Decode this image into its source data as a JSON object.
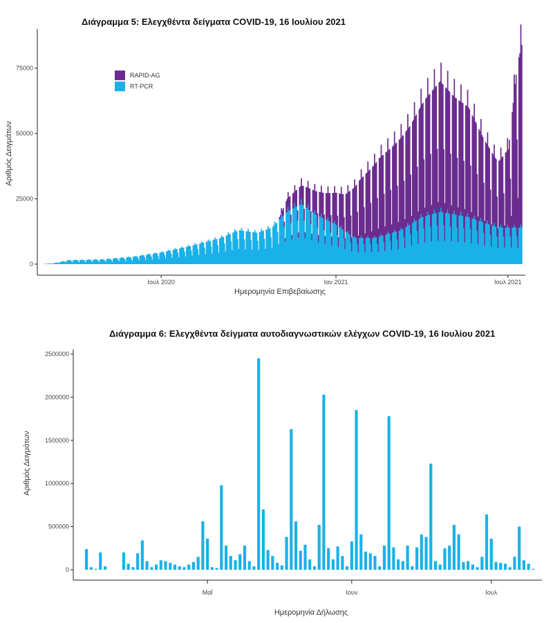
{
  "colors": {
    "rapid": "#6a2c8e",
    "pcr": "#1ab1e8",
    "bar": "#1ab1e8",
    "axis": "#222222"
  },
  "chart_data": [
    {
      "type": "bar",
      "stacked": true,
      "title": "Διάγραμμα 5: Ελεγχθέντα δείγματα COVID-19, 16 Ιουλίου 2021",
      "xlabel": "Ημερομηνία Επιβεβαίωσης",
      "ylabel": "Αριθμός Δειγμάτων",
      "ylim": [
        0,
        90000
      ],
      "yticks": [
        0,
        25000,
        50000,
        75000
      ],
      "ytick_labels": [
        "0",
        "25000",
        "50000",
        "75000"
      ],
      "xticks": [
        "2020-07-01",
        "2021-01-01",
        "2021-07-01"
      ],
      "xtick_labels": [
        "Ιουλ 2020",
        "Ιαν 2021",
        "Ιουλ 2021"
      ],
      "x_start": "2020-02-26",
      "x_end": "2021-07-15",
      "legend_position": "top-left",
      "series": [
        {
          "name": "RAPID-AG",
          "color": "#6a2c8e",
          "keyframes": [
            [
              "2020-02-26",
              0
            ],
            [
              "2020-10-31",
              0
            ],
            [
              "2020-11-10",
              5000
            ],
            [
              "2020-12-01",
              8000
            ],
            [
              "2020-12-20",
              10000
            ],
            [
              "2021-01-10",
              14000
            ],
            [
              "2021-01-25",
              22000
            ],
            [
              "2021-02-15",
              30000
            ],
            [
              "2021-03-01",
              33000
            ],
            [
              "2021-03-20",
              38000
            ],
            [
              "2021-04-05",
              45000
            ],
            [
              "2021-04-20",
              50000
            ],
            [
              "2021-05-05",
              45000
            ],
            [
              "2021-05-20",
              42000
            ],
            [
              "2021-06-05",
              32000
            ],
            [
              "2021-06-20",
              25000
            ],
            [
              "2021-07-01",
              30000
            ],
            [
              "2021-07-10",
              62000
            ],
            [
              "2021-07-15",
              70000
            ]
          ]
        },
        {
          "name": "RT-PCR",
          "color": "#1ab1e8",
          "keyframes": [
            [
              "2020-02-26",
              0
            ],
            [
              "2020-03-10",
              400
            ],
            [
              "2020-03-25",
              1500
            ],
            [
              "2020-04-30",
              1800
            ],
            [
              "2020-06-01",
              2800
            ],
            [
              "2020-07-01",
              4500
            ],
            [
              "2020-08-01",
              7000
            ],
            [
              "2020-09-01",
              10000
            ],
            [
              "2020-09-20",
              13000
            ],
            [
              "2020-10-10",
              12000
            ],
            [
              "2020-10-25",
              14000
            ],
            [
              "2020-11-10",
              20000
            ],
            [
              "2020-11-25",
              23000
            ],
            [
              "2020-12-10",
              19000
            ],
            [
              "2021-01-01",
              15000
            ],
            [
              "2021-01-20",
              10000
            ],
            [
              "2021-02-10",
              10000
            ],
            [
              "2021-03-10",
              13000
            ],
            [
              "2021-04-01",
              18000
            ],
            [
              "2021-04-20",
              20000
            ],
            [
              "2021-05-20",
              18000
            ],
            [
              "2021-06-20",
              14000
            ],
            [
              "2021-07-15",
              14000
            ]
          ]
        }
      ]
    },
    {
      "type": "bar",
      "title": "Διάγραμμα 6: Ελεγχθέντα δείγματα αυτοδιαγνωστικών ελέγχων COVID-19, 16 Ιουλίου 2021",
      "xlabel": "Ημερομηνία Δήλωσης",
      "ylabel": "Αριθμός Δειγμάτων",
      "ylim": [
        0,
        2500000
      ],
      "yticks": [
        0,
        500000,
        1000000,
        1500000,
        2000000,
        2500000
      ],
      "ytick_labels": [
        "0",
        "500000",
        "1000000",
        "1500000",
        "2000000",
        "2500000"
      ],
      "x_start": "2021-04-05",
      "xticks": [
        "2021-05-01",
        "2021-06-01",
        "2021-07-01"
      ],
      "xtick_labels": [
        "Μαΐ",
        "Ιουν",
        "Ιουλ"
      ],
      "values": [
        240000,
        30000,
        10000,
        200000,
        40000,
        0,
        0,
        0,
        200000,
        70000,
        30000,
        190000,
        340000,
        100000,
        30000,
        60000,
        110000,
        100000,
        80000,
        60000,
        40000,
        30000,
        60000,
        90000,
        150000,
        560000,
        360000,
        30000,
        20000,
        980000,
        280000,
        160000,
        110000,
        180000,
        280000,
        100000,
        40000,
        2450000,
        700000,
        230000,
        160000,
        80000,
        50000,
        380000,
        1630000,
        560000,
        220000,
        290000,
        120000,
        40000,
        520000,
        2030000,
        250000,
        120000,
        270000,
        160000,
        40000,
        330000,
        1850000,
        410000,
        210000,
        190000,
        160000,
        40000,
        280000,
        1780000,
        260000,
        120000,
        100000,
        280000,
        40000,
        260000,
        410000,
        380000,
        1230000,
        100000,
        60000,
        250000,
        280000,
        520000,
        410000,
        90000,
        100000,
        60000,
        30000,
        150000,
        640000,
        360000,
        90000,
        80000,
        70000,
        30000,
        150000,
        500000,
        110000,
        70000,
        10000
      ]
    }
  ]
}
